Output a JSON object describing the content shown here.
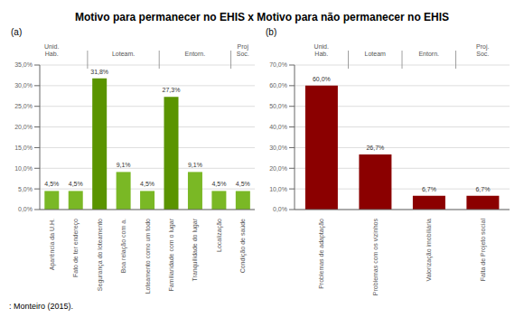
{
  "title": "Motivo para permanecer no EHIS x Motivo para não permanecer no EHIS",
  "annotations": [
    ": Monteiro (2015)."
  ],
  "chart_data": [
    {
      "type": "bar",
      "subtitle": "(a)",
      "categories": [
        "Aparência da U.H.",
        "Fato de ter endereço",
        "Segurança do loteamento",
        "Boa relação com a.",
        "Loteamento como um todo",
        "Familiaridade com o lugar",
        "Tranquilidade do lugar",
        "Localização",
        "Condição de saúde"
      ],
      "category_groups": [
        "Unid.\nHab.",
        "Unid.\nHab.",
        "Loteam.",
        "Loteam.",
        "Loteam.",
        "Entorn.",
        "Entorn.",
        "Entorn.",
        "Proj\nSoc."
      ],
      "values": [
        4.5,
        4.5,
        31.8,
        9.1,
        4.5,
        27.3,
        9.1,
        4.5,
        4.5
      ],
      "value_labels": [
        "4,5%",
        "4,5%",
        "31,8%",
        "9,1%",
        "4,5%",
        "27,3%",
        "9,1%",
        "4,5%",
        "4,5%"
      ],
      "colors": [
        "#7ab825",
        "#7ab825",
        "#5a9400",
        "#7ab825",
        "#7ab825",
        "#5a9400",
        "#7ab825",
        "#7ab825",
        "#7ab825"
      ],
      "ylim": [
        0,
        35
      ],
      "yticks": [
        {
          "value": 0,
          "label": "0,0%"
        },
        {
          "value": 5.0,
          "label": "5,0%"
        },
        {
          "value": 10.0,
          "label": "10,0%"
        },
        {
          "value": 15.0,
          "label": "15,0%"
        },
        {
          "value": 20.0,
          "label": "20,0%"
        },
        {
          "value": 25.0,
          "label": "25,0%"
        },
        {
          "value": 30.0,
          "label": "30,0%"
        },
        {
          "value": 35.0,
          "label": "35,0%"
        }
      ],
      "grid": true,
      "data_labels": true
    },
    {
      "type": "bar",
      "subtitle": "(b)",
      "categories": [
        "Problemas de adaptação",
        "Problemas com os vizinhos",
        "Valorização imobiliária",
        "Falta de Projeto social"
      ],
      "category_groups": [
        "Unid.\nHab.",
        "Loteam",
        "Entorn.",
        "Proj.\nSoc."
      ],
      "values": [
        60.0,
        26.7,
        6.7,
        6.7
      ],
      "value_labels": [
        "60,0%",
        "26,7%",
        "6,7%",
        "6,7%"
      ],
      "color": "#8b0000",
      "ylim": [
        0,
        70
      ],
      "yticks": [
        {
          "value": 0,
          "label": "0,0%"
        },
        {
          "value": 10.0,
          "label": "10,0%"
        },
        {
          "value": 20.0,
          "label": "20,0%"
        },
        {
          "value": 30.0,
          "label": "30,0%"
        },
        {
          "value": 40.0,
          "label": "40,0%"
        },
        {
          "value": 50.0,
          "label": "50,0%"
        },
        {
          "value": 60.0,
          "label": "60,0%"
        },
        {
          "value": 70.0,
          "label": "70,0%"
        }
      ],
      "grid": true,
      "data_labels": true
    }
  ]
}
